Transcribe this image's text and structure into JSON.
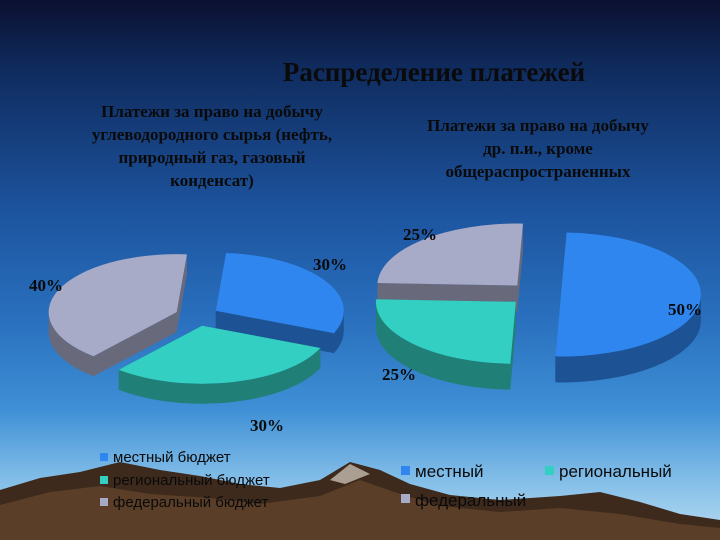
{
  "slide": {
    "title": "Распределение платежей"
  },
  "chart_data": [
    {
      "type": "pie",
      "title": "Платежи за право на добычу углеводородного сырья (нефть, природный газ, газовый конденсат)",
      "title_lines": [
        "Платежи за право на добычу",
        "углеводородного сырья (нефть,",
        "природный газ, газовый",
        "конденсат)"
      ],
      "slices": [
        {
          "name": "местный бюджет",
          "value": 30,
          "label": "30%",
          "color": "#2f86ee"
        },
        {
          "name": "региональный бюджет",
          "value": 30,
          "label": "30%",
          "color": "#33cfc2"
        },
        {
          "name": "федеральный бюджет",
          "value": 40,
          "label": "40%",
          "color": "#a8abc8"
        }
      ],
      "legend": {
        "placement": "bottom-left",
        "items": [
          "местный бюджет",
          "региональный бюджет",
          "федеральный бюджет"
        ]
      }
    },
    {
      "type": "pie",
      "title": "Платежи за право на добычу др. п.и., кроме общераспространенных",
      "title_lines": [
        "Платежи за право на добычу",
        "др. п.и., кроме",
        "общераспространенных"
      ],
      "slices": [
        {
          "name": "местный",
          "value": 50,
          "label": "50%",
          "color": "#2f86ee"
        },
        {
          "name": "региональный",
          "value": 25,
          "label": "25%",
          "color": "#33cfc2"
        },
        {
          "name": "федеральный",
          "value": 25,
          "label": "25%",
          "color": "#a8abc8"
        }
      ],
      "legend": {
        "placement": "bottom-right",
        "items": [
          "местный",
          "региональный",
          "федеральный"
        ]
      }
    }
  ]
}
